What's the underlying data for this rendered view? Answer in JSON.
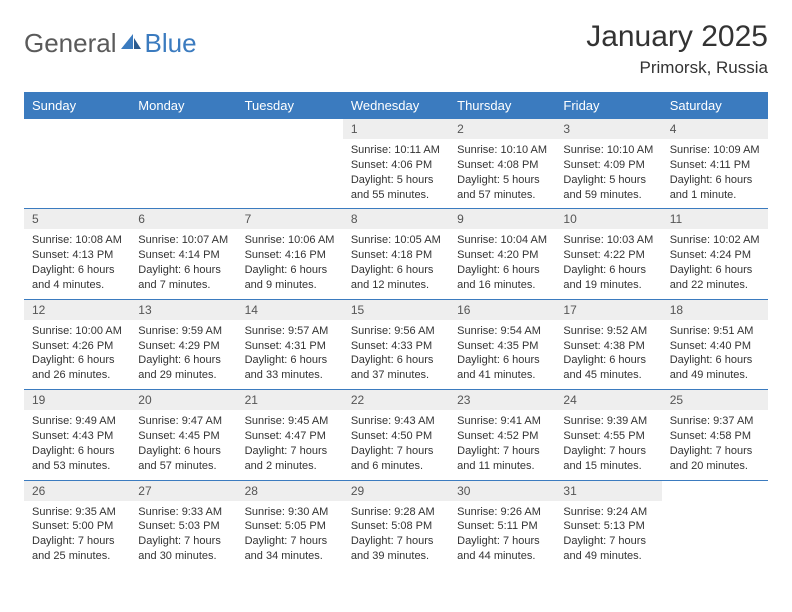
{
  "brand": {
    "text1": "General",
    "text2": "Blue"
  },
  "title": "January 2025",
  "location": "Primorsk, Russia",
  "colors": {
    "header_bg": "#3b7bbf",
    "header_text": "#ffffff",
    "daynum_bg": "#eeeeee",
    "row_divider": "#3b7bbf",
    "body_text": "#333333",
    "logo_gray": "#5a5a5a",
    "logo_blue": "#3b7bbf",
    "page_bg": "#ffffff"
  },
  "days_of_week": [
    "Sunday",
    "Monday",
    "Tuesday",
    "Wednesday",
    "Thursday",
    "Friday",
    "Saturday"
  ],
  "weeks": [
    [
      {
        "n": "",
        "sunrise": "",
        "sunset": "",
        "daylight": ""
      },
      {
        "n": "",
        "sunrise": "",
        "sunset": "",
        "daylight": ""
      },
      {
        "n": "",
        "sunrise": "",
        "sunset": "",
        "daylight": ""
      },
      {
        "n": "1",
        "sunrise": "Sunrise: 10:11 AM",
        "sunset": "Sunset: 4:06 PM",
        "daylight": "Daylight: 5 hours and 55 minutes."
      },
      {
        "n": "2",
        "sunrise": "Sunrise: 10:10 AM",
        "sunset": "Sunset: 4:08 PM",
        "daylight": "Daylight: 5 hours and 57 minutes."
      },
      {
        "n": "3",
        "sunrise": "Sunrise: 10:10 AM",
        "sunset": "Sunset: 4:09 PM",
        "daylight": "Daylight: 5 hours and 59 minutes."
      },
      {
        "n": "4",
        "sunrise": "Sunrise: 10:09 AM",
        "sunset": "Sunset: 4:11 PM",
        "daylight": "Daylight: 6 hours and 1 minute."
      }
    ],
    [
      {
        "n": "5",
        "sunrise": "Sunrise: 10:08 AM",
        "sunset": "Sunset: 4:13 PM",
        "daylight": "Daylight: 6 hours and 4 minutes."
      },
      {
        "n": "6",
        "sunrise": "Sunrise: 10:07 AM",
        "sunset": "Sunset: 4:14 PM",
        "daylight": "Daylight: 6 hours and 7 minutes."
      },
      {
        "n": "7",
        "sunrise": "Sunrise: 10:06 AM",
        "sunset": "Sunset: 4:16 PM",
        "daylight": "Daylight: 6 hours and 9 minutes."
      },
      {
        "n": "8",
        "sunrise": "Sunrise: 10:05 AM",
        "sunset": "Sunset: 4:18 PM",
        "daylight": "Daylight: 6 hours and 12 minutes."
      },
      {
        "n": "9",
        "sunrise": "Sunrise: 10:04 AM",
        "sunset": "Sunset: 4:20 PM",
        "daylight": "Daylight: 6 hours and 16 minutes."
      },
      {
        "n": "10",
        "sunrise": "Sunrise: 10:03 AM",
        "sunset": "Sunset: 4:22 PM",
        "daylight": "Daylight: 6 hours and 19 minutes."
      },
      {
        "n": "11",
        "sunrise": "Sunrise: 10:02 AM",
        "sunset": "Sunset: 4:24 PM",
        "daylight": "Daylight: 6 hours and 22 minutes."
      }
    ],
    [
      {
        "n": "12",
        "sunrise": "Sunrise: 10:00 AM",
        "sunset": "Sunset: 4:26 PM",
        "daylight": "Daylight: 6 hours and 26 minutes."
      },
      {
        "n": "13",
        "sunrise": "Sunrise: 9:59 AM",
        "sunset": "Sunset: 4:29 PM",
        "daylight": "Daylight: 6 hours and 29 minutes."
      },
      {
        "n": "14",
        "sunrise": "Sunrise: 9:57 AM",
        "sunset": "Sunset: 4:31 PM",
        "daylight": "Daylight: 6 hours and 33 minutes."
      },
      {
        "n": "15",
        "sunrise": "Sunrise: 9:56 AM",
        "sunset": "Sunset: 4:33 PM",
        "daylight": "Daylight: 6 hours and 37 minutes."
      },
      {
        "n": "16",
        "sunrise": "Sunrise: 9:54 AM",
        "sunset": "Sunset: 4:35 PM",
        "daylight": "Daylight: 6 hours and 41 minutes."
      },
      {
        "n": "17",
        "sunrise": "Sunrise: 9:52 AM",
        "sunset": "Sunset: 4:38 PM",
        "daylight": "Daylight: 6 hours and 45 minutes."
      },
      {
        "n": "18",
        "sunrise": "Sunrise: 9:51 AM",
        "sunset": "Sunset: 4:40 PM",
        "daylight": "Daylight: 6 hours and 49 minutes."
      }
    ],
    [
      {
        "n": "19",
        "sunrise": "Sunrise: 9:49 AM",
        "sunset": "Sunset: 4:43 PM",
        "daylight": "Daylight: 6 hours and 53 minutes."
      },
      {
        "n": "20",
        "sunrise": "Sunrise: 9:47 AM",
        "sunset": "Sunset: 4:45 PM",
        "daylight": "Daylight: 6 hours and 57 minutes."
      },
      {
        "n": "21",
        "sunrise": "Sunrise: 9:45 AM",
        "sunset": "Sunset: 4:47 PM",
        "daylight": "Daylight: 7 hours and 2 minutes."
      },
      {
        "n": "22",
        "sunrise": "Sunrise: 9:43 AM",
        "sunset": "Sunset: 4:50 PM",
        "daylight": "Daylight: 7 hours and 6 minutes."
      },
      {
        "n": "23",
        "sunrise": "Sunrise: 9:41 AM",
        "sunset": "Sunset: 4:52 PM",
        "daylight": "Daylight: 7 hours and 11 minutes."
      },
      {
        "n": "24",
        "sunrise": "Sunrise: 9:39 AM",
        "sunset": "Sunset: 4:55 PM",
        "daylight": "Daylight: 7 hours and 15 minutes."
      },
      {
        "n": "25",
        "sunrise": "Sunrise: 9:37 AM",
        "sunset": "Sunset: 4:58 PM",
        "daylight": "Daylight: 7 hours and 20 minutes."
      }
    ],
    [
      {
        "n": "26",
        "sunrise": "Sunrise: 9:35 AM",
        "sunset": "Sunset: 5:00 PM",
        "daylight": "Daylight: 7 hours and 25 minutes."
      },
      {
        "n": "27",
        "sunrise": "Sunrise: 9:33 AM",
        "sunset": "Sunset: 5:03 PM",
        "daylight": "Daylight: 7 hours and 30 minutes."
      },
      {
        "n": "28",
        "sunrise": "Sunrise: 9:30 AM",
        "sunset": "Sunset: 5:05 PM",
        "daylight": "Daylight: 7 hours and 34 minutes."
      },
      {
        "n": "29",
        "sunrise": "Sunrise: 9:28 AM",
        "sunset": "Sunset: 5:08 PM",
        "daylight": "Daylight: 7 hours and 39 minutes."
      },
      {
        "n": "30",
        "sunrise": "Sunrise: 9:26 AM",
        "sunset": "Sunset: 5:11 PM",
        "daylight": "Daylight: 7 hours and 44 minutes."
      },
      {
        "n": "31",
        "sunrise": "Sunrise: 9:24 AM",
        "sunset": "Sunset: 5:13 PM",
        "daylight": "Daylight: 7 hours and 49 minutes."
      },
      {
        "n": "",
        "sunrise": "",
        "sunset": "",
        "daylight": ""
      }
    ]
  ]
}
